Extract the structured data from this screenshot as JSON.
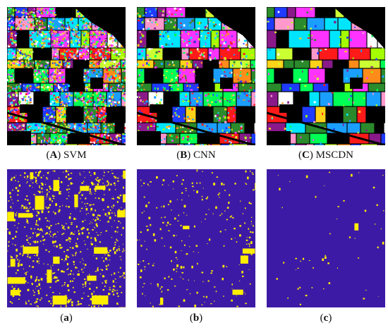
{
  "figure": {
    "top_row": [
      {
        "letter": "A",
        "method": "SVM"
      },
      {
        "letter": "B",
        "method": "CNN"
      },
      {
        "letter": "C",
        "method": "MSCDN"
      }
    ],
    "bottom_row": [
      {
        "letter": "a"
      },
      {
        "letter": "b"
      },
      {
        "letter": "c"
      }
    ],
    "error_density": [
      0.22,
      0.07,
      0.015
    ]
  },
  "colors": {
    "background": "#000000",
    "classes": [
      "#1f3bff",
      "#00e5ff",
      "#ff1a1a",
      "#a4ff00",
      "#00ff55",
      "#ffd21a",
      "#ff33ff",
      "#ff8c1a",
      "#2b8a2b",
      "#ffffff",
      "#1b9fff",
      "#ff99cc",
      "#8a1a8a",
      "#ccff33"
    ],
    "error_bg": "#3d1aa6",
    "error_fg": "#ffee00"
  }
}
